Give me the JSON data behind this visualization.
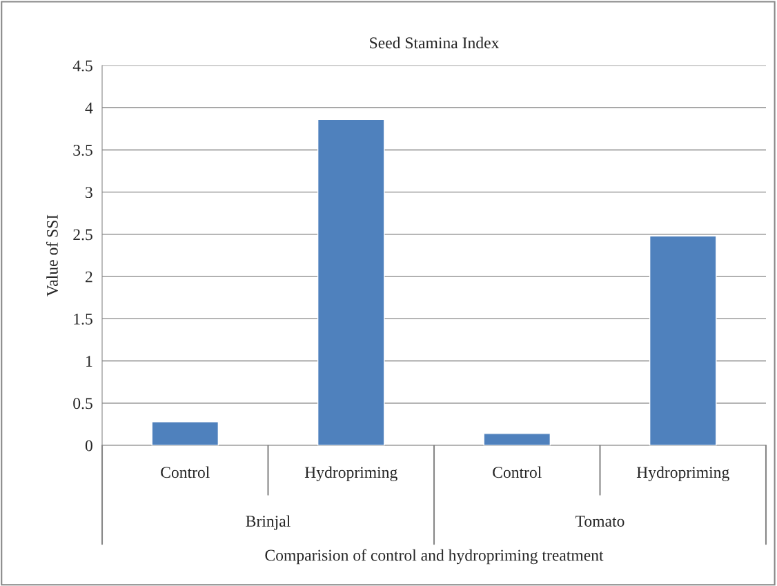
{
  "chart_data": {
    "type": "bar",
    "title": "Seed Stamina Index",
    "xlabel": "Comparision of control and hydropriming treatment",
    "ylabel": "Value of SSI",
    "categories": [
      "Control",
      "Hydropriming",
      "Control",
      "Hydropriming"
    ],
    "values": [
      0.28,
      3.86,
      0.14,
      2.48
    ],
    "color": "#4f81bd",
    "ylim": [
      0,
      4.5
    ],
    "yticks": [
      0,
      0.5,
      1,
      1.5,
      2,
      2.5,
      3,
      3.5,
      4,
      4.5
    ],
    "grid": "y",
    "annotations": [
      "Brinjal",
      "Tomato"
    ]
  }
}
